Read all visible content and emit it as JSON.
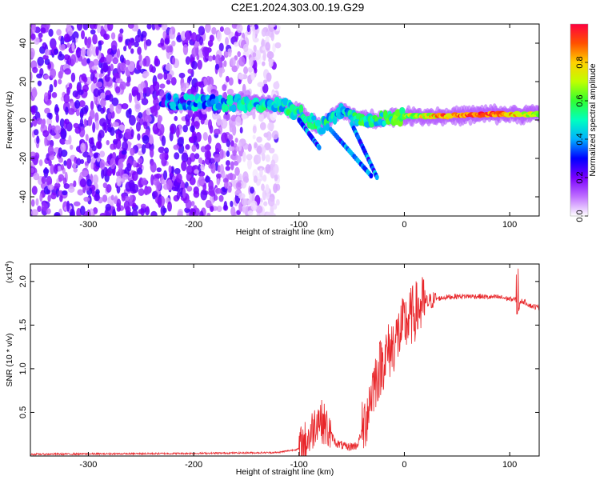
{
  "title": "C2E1.2024.303.00.19.G29",
  "chart_data": [
    {
      "type": "heatmap",
      "xlabel": "Height of straight line (km)",
      "ylabel": "Frequency (Hz)",
      "xlim": [
        -355,
        128
      ],
      "ylim": [
        -50,
        50
      ],
      "xticks": [
        -300,
        -200,
        -100,
        0,
        100
      ],
      "yticks": [
        -40,
        -20,
        0,
        20,
        40
      ],
      "colorbar": {
        "label": "Normalized spectral amplitude",
        "range": [
          0,
          1
        ],
        "ticks": [
          "0.0",
          "0.2",
          "0.4",
          "0.6",
          "0.8"
        ],
        "colors": [
          "#ffffff",
          "#c070ff",
          "#7a00ff",
          "#0000ff",
          "#00b0ff",
          "#00ffc0",
          "#30ff30",
          "#c0ff00",
          "#ffd000",
          "#ff5000",
          "#ff0040"
        ]
      },
      "features": {
        "noise_region_x": [
          -355,
          -120
        ],
        "signal_ridge": [
          {
            "x": -230,
            "freq": 10,
            "amp": 0.3
          },
          {
            "x": -200,
            "freq": 9,
            "amp": 0.4
          },
          {
            "x": -160,
            "freq": 9,
            "amp": 0.45
          },
          {
            "x": -120,
            "freq": 8,
            "amp": 0.45
          },
          {
            "x": -100,
            "freq": 4,
            "amp": 0.5
          },
          {
            "x": -80,
            "freq": -4,
            "amp": 0.5
          },
          {
            "x": -60,
            "freq": 5,
            "amp": 0.45
          },
          {
            "x": -40,
            "freq": 0,
            "amp": 0.5
          },
          {
            "x": -20,
            "freq": 1,
            "amp": 0.5
          },
          {
            "x": 0,
            "freq": 2,
            "amp": 0.6
          },
          {
            "x": 40,
            "freq": 2,
            "amp": 0.85
          },
          {
            "x": 80,
            "freq": 3,
            "amp": 0.9
          },
          {
            "x": 128,
            "freq": 3,
            "amp": 0.7
          }
        ]
      }
    },
    {
      "type": "line",
      "xlabel": "Height of straight line (km)",
      "ylabel": "SNR (10 * v/v)",
      "multiplier": "(x10",
      "multiplier_exp": "4",
      "multiplier_close": ")",
      "xlim": [
        -355,
        128
      ],
      "ylim": [
        0,
        2.2
      ],
      "xticks": [
        -300,
        -200,
        -100,
        0,
        100
      ],
      "yticks": [
        "0.5",
        "1.0",
        "1.5",
        "2.0"
      ],
      "series": [
        {
          "color": "#e8262a",
          "x": [
            -355,
            -200,
            -120,
            -100,
            -90,
            -82,
            -75,
            -65,
            -55,
            -45,
            -38,
            -30,
            -25,
            -20,
            -12,
            -5,
            0,
            10,
            20,
            30,
            40,
            50,
            60,
            70,
            80,
            90,
            100,
            106,
            108,
            110,
            115,
            120,
            128
          ],
          "y": [
            0.02,
            0.03,
            0.04,
            0.08,
            0.22,
            0.45,
            0.35,
            0.15,
            0.1,
            0.12,
            0.35,
            0.8,
            0.95,
            1.1,
            1.25,
            1.4,
            1.5,
            1.65,
            1.75,
            1.8,
            1.82,
            1.83,
            1.83,
            1.83,
            1.82,
            1.82,
            1.8,
            1.79,
            1.6,
            1.78,
            1.76,
            1.72,
            1.7
          ]
        }
      ]
    }
  ]
}
